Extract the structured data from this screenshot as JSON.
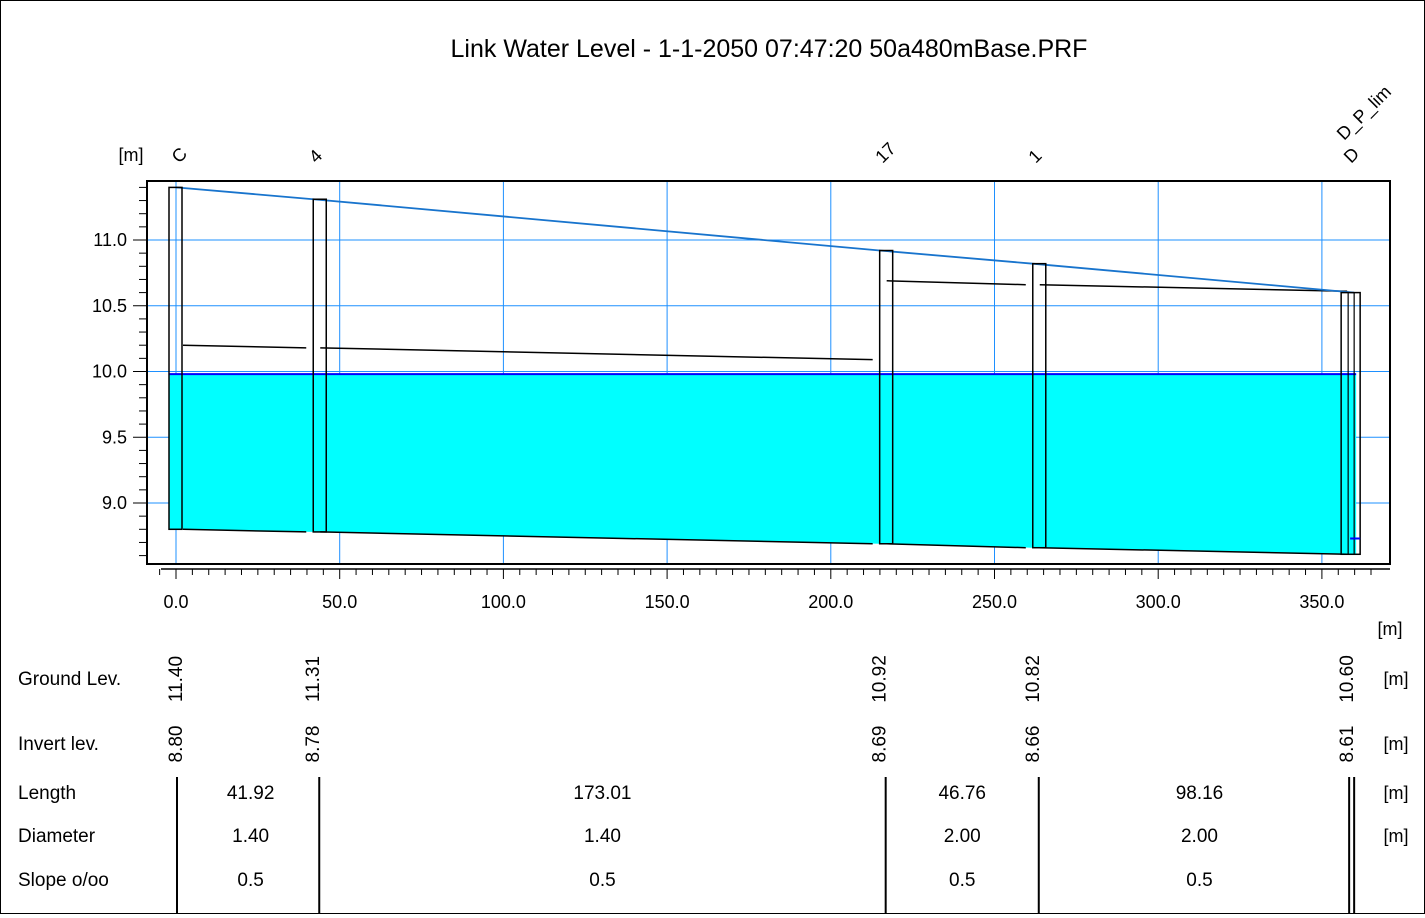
{
  "chart_data": {
    "type": "line",
    "title": "Link Water Level - 1-1-2050 07:47:20 50a480mBase.PRF",
    "xlabel": "",
    "ylabel": "",
    "x_unit": "[m]",
    "y_unit": "[m]",
    "xlim": [
      -5,
      370
    ],
    "ylim": [
      8.55,
      11.45
    ],
    "x_ticks": [
      0,
      50,
      100,
      150,
      200,
      250,
      300,
      350
    ],
    "x_tick_labels": [
      "0.0",
      "50.0",
      "100.0",
      "150.0",
      "200.0",
      "250.0",
      "300.0",
      "350.0"
    ],
    "y_ticks": [
      9.0,
      9.5,
      10.0,
      10.5,
      11.0
    ],
    "y_tick_labels": [
      "9.0",
      "9.5",
      "10.0",
      "10.5",
      "11.0"
    ],
    "grid": true,
    "colors": {
      "water": "#00ffff",
      "water_line": "#0000ff",
      "ground_line": "#1874cd",
      "grid": "#1e90ff"
    },
    "nodes": [
      {
        "name": "C",
        "x": 0.0,
        "ground": 11.4,
        "invert": 8.8
      },
      {
        "name": "4",
        "x": 41.92,
        "ground": 11.31,
        "invert": 8.78
      },
      {
        "name": "17",
        "x": 214.93,
        "ground": 10.92,
        "invert": 8.69
      },
      {
        "name": "1",
        "x": 261.69,
        "ground": 10.82,
        "invert": 8.66
      },
      {
        "name": "D",
        "x": 359.85,
        "ground": 10.6,
        "invert": 8.61
      }
    ],
    "extra_label": "D_P_lim",
    "water_level": 9.98,
    "links": [
      {
        "from": "C",
        "to": "4",
        "length": 41.92,
        "diameter": 1.4,
        "slope": 0.5
      },
      {
        "from": "4",
        "to": "17",
        "length": 173.01,
        "diameter": 1.4,
        "slope": 0.5
      },
      {
        "from": "17",
        "to": "1",
        "length": 46.76,
        "diameter": 2.0,
        "slope": 0.5
      },
      {
        "from": "1",
        "to": "D",
        "length": 98.16,
        "diameter": 2.0,
        "slope": 0.5
      }
    ],
    "table": {
      "rows": [
        {
          "label": "Ground Lev.",
          "unit": "[m]",
          "values": [
            "11.40",
            "11.31",
            "10.92",
            "10.82",
            "10.60"
          ]
        },
        {
          "label": "Invert lev.",
          "unit": "[m]",
          "values": [
            "8.80",
            "8.78",
            "8.69",
            "8.66",
            "8.61"
          ]
        },
        {
          "label": "Length",
          "unit": "[m]",
          "values": [
            "41.92",
            "173.01",
            "46.76",
            "98.16"
          ]
        },
        {
          "label": "Diameter",
          "unit": "[m]",
          "values": [
            "1.40",
            "1.40",
            "2.00",
            "2.00"
          ]
        },
        {
          "label": "Slope o/oo",
          "unit": "",
          "values": [
            "0.5",
            "0.5",
            "0.5",
            "0.5"
          ]
        }
      ]
    }
  }
}
